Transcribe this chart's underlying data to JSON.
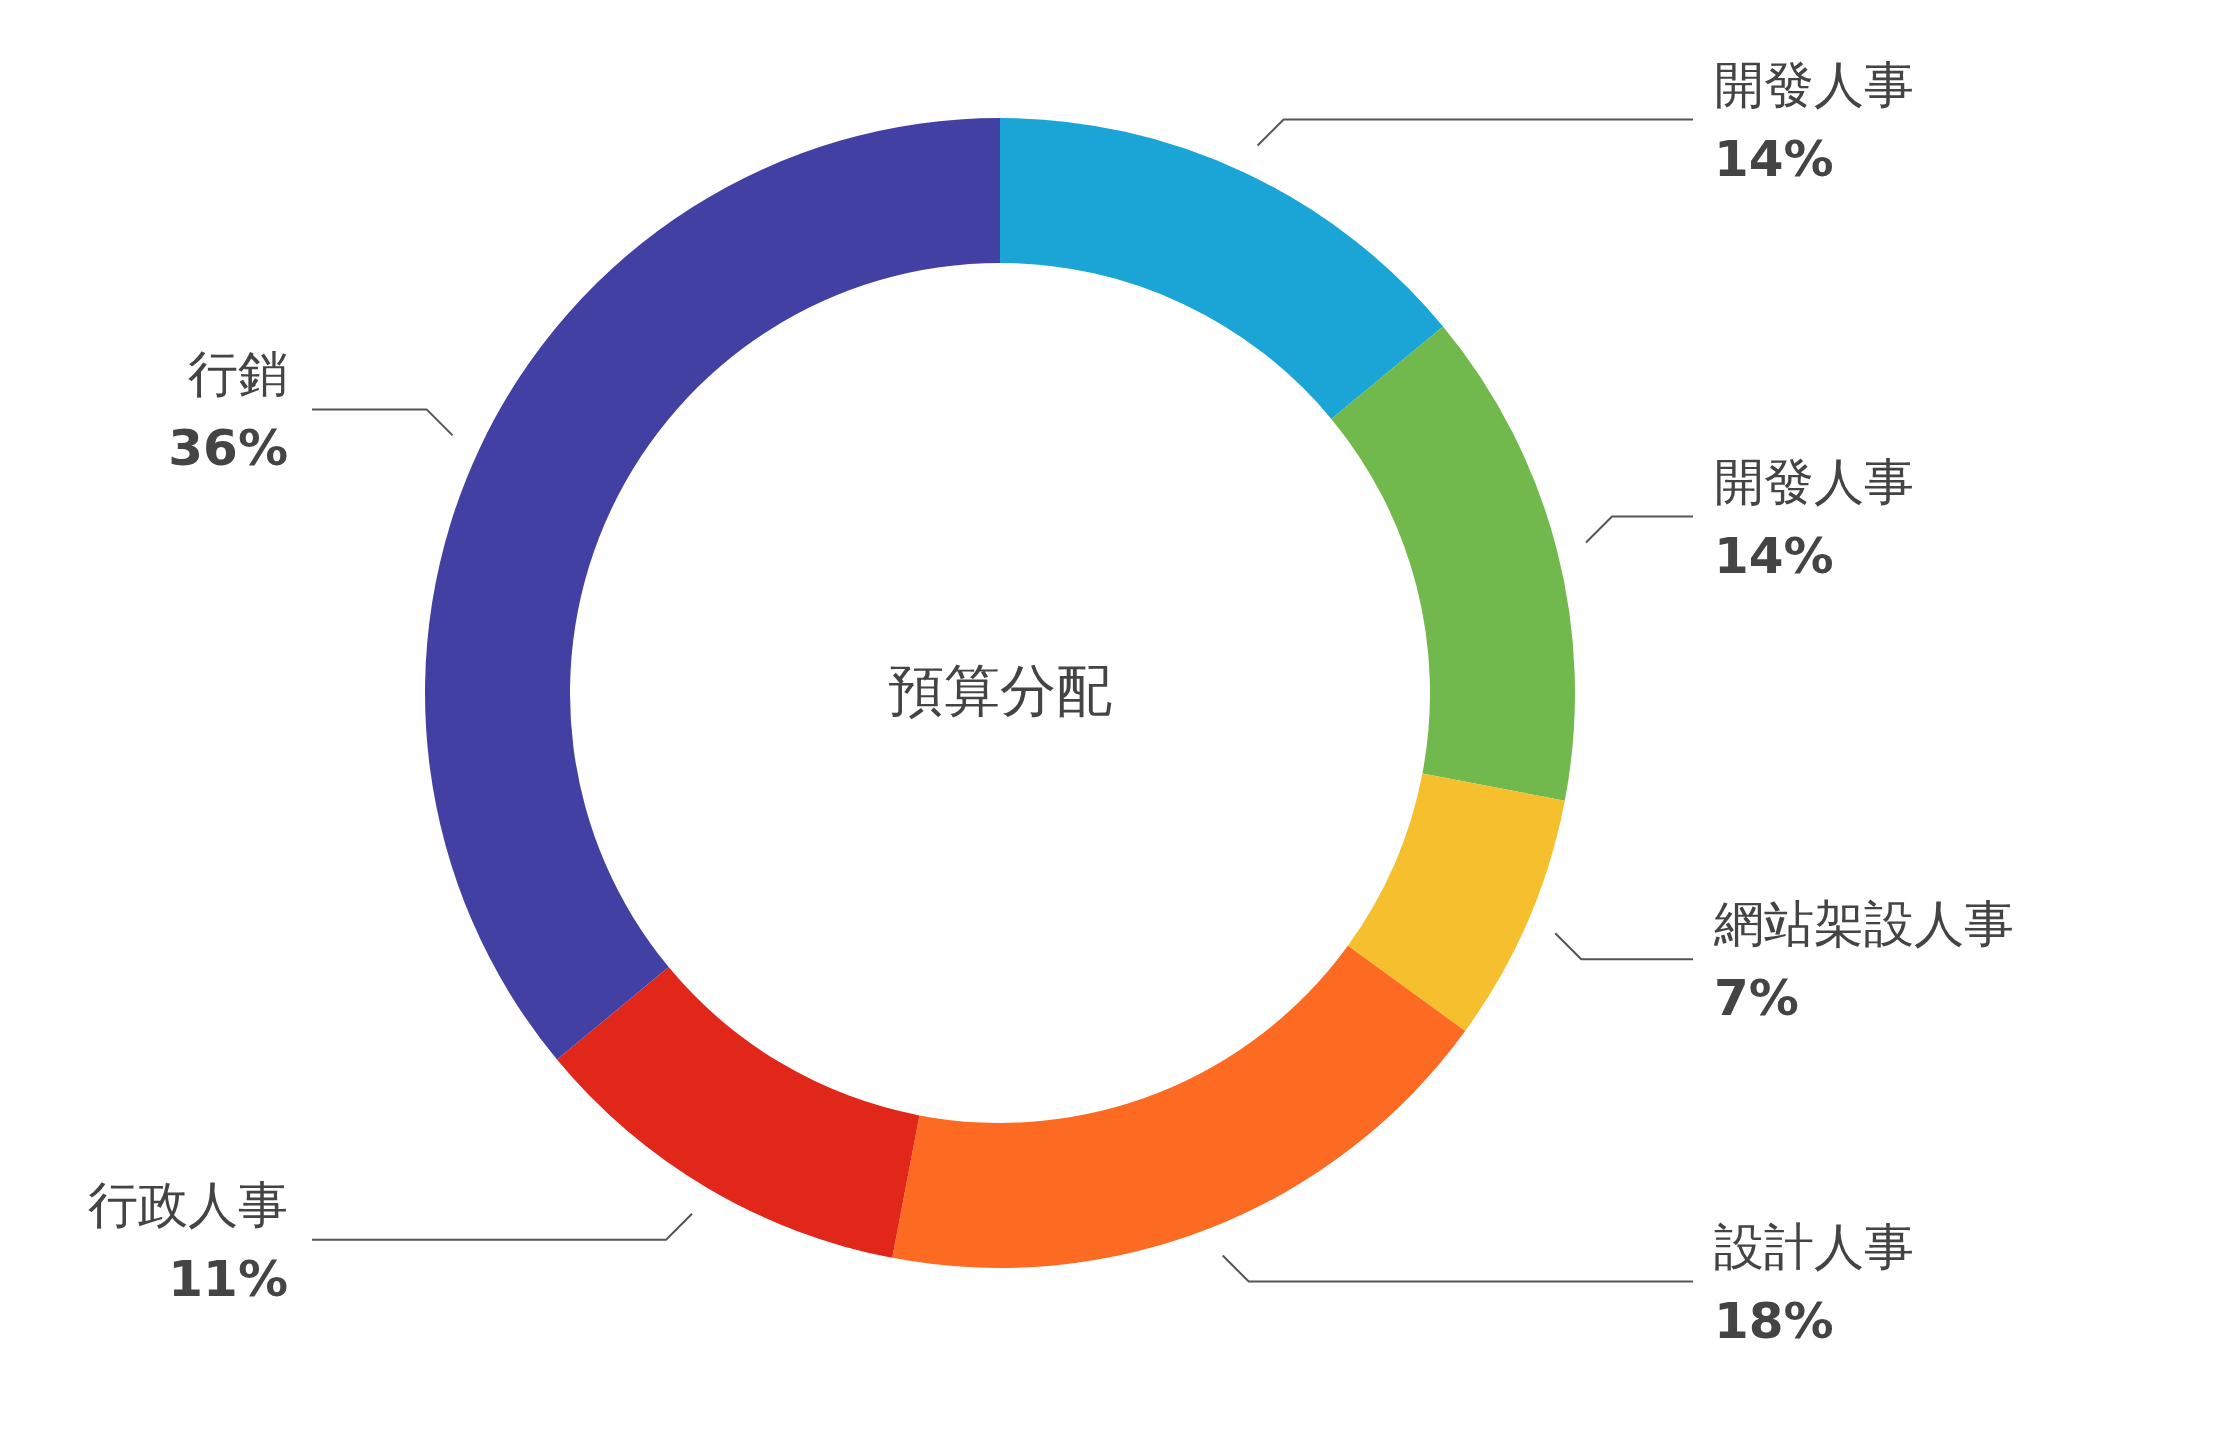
{
  "chart_data": {
    "type": "donut",
    "title": "預算分配",
    "categories": [
      "開發人事",
      "開發人事",
      "網站架設人事",
      "設計人事",
      "行政人事",
      "行銷"
    ],
    "values": [
      14,
      14,
      7,
      18,
      11,
      36
    ],
    "colors": [
      "#1ba5d7",
      "#71b94c",
      "#f5bf2e",
      "#fd6a22",
      "#e0271a",
      "#4340a4"
    ],
    "value_labels": [
      "14%",
      "14%",
      "7%",
      "18%",
      "11%",
      "36%"
    ]
  }
}
